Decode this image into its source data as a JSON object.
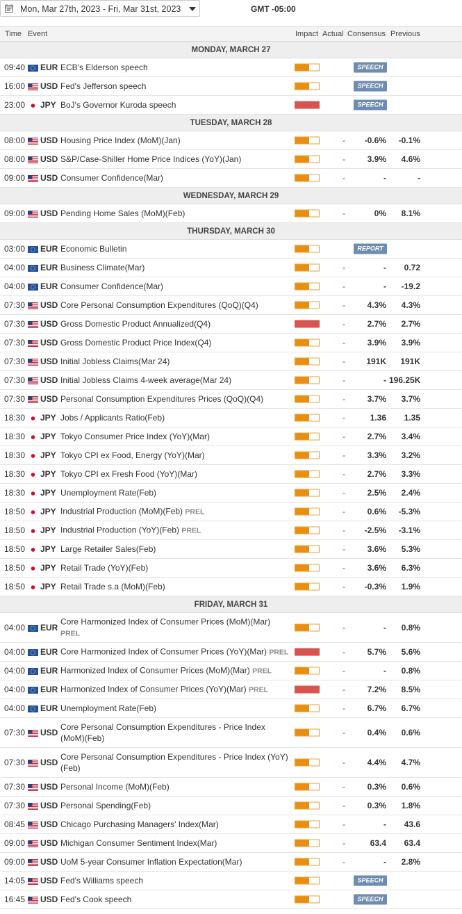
{
  "toolbar": {
    "date_range": "Mon, Mar 27th, 2023 -   Fri, Mar 31st, 2023",
    "timezone": "GMT -05:00"
  },
  "columns": {
    "time": "Time",
    "event": "Event",
    "impact": "Impact",
    "actual": "Actual",
    "consensus": "Consensus",
    "previous": "Previous"
  },
  "colors": {
    "impact_medium": "#e88f12",
    "impact_high": "#d9534f",
    "badge": "#6e8bb0"
  },
  "days": [
    {
      "label": "MONDAY, MARCH 27",
      "events": [
        {
          "time": "09:40",
          "currency": "EUR",
          "flag": "eu-flag-icon",
          "event": "ECB's Elderson speech",
          "impact": "medium",
          "actual": "",
          "consensus": "",
          "previous": "",
          "badge": "SPEECH"
        },
        {
          "time": "16:00",
          "currency": "USD",
          "flag": "us-flag-icon",
          "event": "Fed's Jefferson speech",
          "impact": "medium",
          "actual": "",
          "consensus": "",
          "previous": "",
          "badge": "SPEECH"
        },
        {
          "time": "23:00",
          "currency": "JPY",
          "flag": "jp-flag-icon",
          "event": "BoJ's Governor Kuroda speech",
          "impact": "high",
          "actual": "",
          "consensus": "",
          "previous": "",
          "badge": "SPEECH"
        }
      ]
    },
    {
      "label": "TUESDAY, MARCH 28",
      "events": [
        {
          "time": "08:00",
          "currency": "USD",
          "flag": "us-flag-icon",
          "event": "Housing Price Index (MoM)(Jan)",
          "impact": "medium",
          "actual": "-",
          "consensus": "-0.6%",
          "previous": "-0.1%"
        },
        {
          "time": "08:00",
          "currency": "USD",
          "flag": "us-flag-icon",
          "event": "S&P/Case-Shiller Home Price Indices (YoY)(Jan)",
          "impact": "medium",
          "actual": "-",
          "consensus": "3.9%",
          "previous": "4.6%"
        },
        {
          "time": "09:00",
          "currency": "USD",
          "flag": "us-flag-icon",
          "event": "Consumer Confidence(Mar)",
          "impact": "medium",
          "actual": "-",
          "consensus": "-",
          "previous": "-"
        }
      ]
    },
    {
      "label": "WEDNESDAY, MARCH 29",
      "events": [
        {
          "time": "09:00",
          "currency": "USD",
          "flag": "us-flag-icon",
          "event": "Pending Home Sales (MoM)(Feb)",
          "impact": "medium",
          "actual": "-",
          "consensus": "0%",
          "previous": "8.1%"
        }
      ]
    },
    {
      "label": "THURSDAY, MARCH 30",
      "events": [
        {
          "time": "03:00",
          "currency": "EUR",
          "flag": "eu-flag-icon",
          "event": "Economic Bulletin",
          "impact": "medium",
          "actual": "",
          "consensus": "",
          "previous": "",
          "badge": "REPORT"
        },
        {
          "time": "04:00",
          "currency": "EUR",
          "flag": "eu-flag-icon",
          "event": "Business Climate(Mar)",
          "impact": "medium",
          "actual": "-",
          "consensus": "-",
          "previous": "0.72"
        },
        {
          "time": "04:00",
          "currency": "EUR",
          "flag": "eu-flag-icon",
          "event": "Consumer Confidence(Mar)",
          "impact": "medium",
          "actual": "-",
          "consensus": "-",
          "previous": "-19.2"
        },
        {
          "time": "07:30",
          "currency": "USD",
          "flag": "us-flag-icon",
          "event": "Core Personal Consumption Expenditures (QoQ)(Q4)",
          "impact": "medium",
          "actual": "-",
          "consensus": "4.3%",
          "previous": "4.3%"
        },
        {
          "time": "07:30",
          "currency": "USD",
          "flag": "us-flag-icon",
          "event": "Gross Domestic Product Annualized(Q4)",
          "impact": "high",
          "actual": "-",
          "consensus": "2.7%",
          "previous": "2.7%"
        },
        {
          "time": "07:30",
          "currency": "USD",
          "flag": "us-flag-icon",
          "event": "Gross Domestic Product Price Index(Q4)",
          "impact": "medium",
          "actual": "-",
          "consensus": "3.9%",
          "previous": "3.9%"
        },
        {
          "time": "07:30",
          "currency": "USD",
          "flag": "us-flag-icon",
          "event": "Initial Jobless Claims(Mar 24)",
          "impact": "medium",
          "actual": "-",
          "consensus": "191K",
          "previous": "191K"
        },
        {
          "time": "07:30",
          "currency": "USD",
          "flag": "us-flag-icon",
          "event": "Initial Jobless Claims 4-week average(Mar 24)",
          "impact": "medium",
          "actual": "-",
          "consensus": "-",
          "previous": "196.25K"
        },
        {
          "time": "07:30",
          "currency": "USD",
          "flag": "us-flag-icon",
          "event": "Personal Consumption Expenditures Prices (QoQ)(Q4)",
          "impact": "medium",
          "actual": "-",
          "consensus": "3.7%",
          "previous": "3.7%"
        },
        {
          "time": "18:30",
          "currency": "JPY",
          "flag": "jp-flag-icon",
          "event": "Jobs / Applicants Ratio(Feb)",
          "impact": "medium",
          "actual": "-",
          "consensus": "1.36",
          "previous": "1.35"
        },
        {
          "time": "18:30",
          "currency": "JPY",
          "flag": "jp-flag-icon",
          "event": "Tokyo Consumer Price Index (YoY)(Mar)",
          "impact": "medium",
          "actual": "-",
          "consensus": "2.7%",
          "previous": "3.4%"
        },
        {
          "time": "18:30",
          "currency": "JPY",
          "flag": "jp-flag-icon",
          "event": "Tokyo CPI ex Food, Energy (YoY)(Mar)",
          "impact": "medium",
          "actual": "-",
          "consensus": "3.3%",
          "previous": "3.2%"
        },
        {
          "time": "18:30",
          "currency": "JPY",
          "flag": "jp-flag-icon",
          "event": "Tokyo CPI ex Fresh Food (YoY)(Mar)",
          "impact": "medium",
          "actual": "-",
          "consensus": "2.7%",
          "previous": "3.3%"
        },
        {
          "time": "18:30",
          "currency": "JPY",
          "flag": "jp-flag-icon",
          "event": "Unemployment Rate(Feb)",
          "impact": "medium",
          "actual": "-",
          "consensus": "2.5%",
          "previous": "2.4%"
        },
        {
          "time": "18:50",
          "currency": "JPY",
          "flag": "jp-flag-icon",
          "event": "Industrial Production (MoM)(Feb)",
          "prel": "PREL",
          "impact": "medium",
          "actual": "-",
          "consensus": "0.6%",
          "previous": "-5.3%"
        },
        {
          "time": "18:50",
          "currency": "JPY",
          "flag": "jp-flag-icon",
          "event": "Industrial Production (YoY)(Feb)",
          "prel": "PREL",
          "impact": "medium",
          "actual": "-",
          "consensus": "-2.5%",
          "previous": "-3.1%"
        },
        {
          "time": "18:50",
          "currency": "JPY",
          "flag": "jp-flag-icon",
          "event": "Large Retailer Sales(Feb)",
          "impact": "medium",
          "actual": "-",
          "consensus": "3.6%",
          "previous": "5.3%"
        },
        {
          "time": "18:50",
          "currency": "JPY",
          "flag": "jp-flag-icon",
          "event": "Retail Trade (YoY)(Feb)",
          "impact": "medium",
          "actual": "-",
          "consensus": "3.6%",
          "previous": "6.3%"
        },
        {
          "time": "18:50",
          "currency": "JPY",
          "flag": "jp-flag-icon",
          "event": "Retail Trade s.a (MoM)(Feb)",
          "impact": "medium",
          "actual": "-",
          "consensus": "-0.3%",
          "previous": "1.9%"
        }
      ]
    },
    {
      "label": "FRIDAY, MARCH 31",
      "events": [
        {
          "time": "04:00",
          "currency": "EUR",
          "flag": "eu-flag-icon",
          "event": "Core Harmonized Index of Consumer Prices (MoM)(Mar)",
          "prel": "PREL",
          "impact": "medium",
          "actual": "-",
          "consensus": "-",
          "previous": "0.8%",
          "tall": true
        },
        {
          "time": "04:00",
          "currency": "EUR",
          "flag": "eu-flag-icon",
          "event": "Core Harmonized Index of Consumer Prices (YoY)(Mar)",
          "prel": "PREL",
          "impact": "high",
          "actual": "-",
          "consensus": "5.7%",
          "previous": "5.6%"
        },
        {
          "time": "04:00",
          "currency": "EUR",
          "flag": "eu-flag-icon",
          "event": "Harmonized Index of Consumer Prices (MoM)(Mar)",
          "prel": "PREL",
          "impact": "medium",
          "actual": "-",
          "consensus": "-",
          "previous": "0.8%"
        },
        {
          "time": "04:00",
          "currency": "EUR",
          "flag": "eu-flag-icon",
          "event": "Harmonized Index of Consumer Prices (YoY)(Mar)",
          "prel": "PREL",
          "impact": "high",
          "actual": "-",
          "consensus": "7.2%",
          "previous": "8.5%"
        },
        {
          "time": "04:00",
          "currency": "EUR",
          "flag": "eu-flag-icon",
          "event": "Unemployment Rate(Feb)",
          "impact": "medium",
          "actual": "-",
          "consensus": "6.7%",
          "previous": "6.7%"
        },
        {
          "time": "07:30",
          "currency": "USD",
          "flag": "us-flag-icon",
          "event": "Core Personal Consumption Expenditures - Price Index (MoM)(Feb)",
          "impact": "medium",
          "actual": "-",
          "consensus": "0.4%",
          "previous": "0.6%",
          "tall": true
        },
        {
          "time": "07:30",
          "currency": "USD",
          "flag": "us-flag-icon",
          "event": "Core Personal Consumption Expenditures - Price Index (YoY)(Feb)",
          "impact": "medium",
          "actual": "-",
          "consensus": "4.4%",
          "previous": "4.7%",
          "tall": true
        },
        {
          "time": "07:30",
          "currency": "USD",
          "flag": "us-flag-icon",
          "event": "Personal Income (MoM)(Feb)",
          "impact": "medium",
          "actual": "-",
          "consensus": "0.3%",
          "previous": "0.6%"
        },
        {
          "time": "07:30",
          "currency": "USD",
          "flag": "us-flag-icon",
          "event": "Personal Spending(Feb)",
          "impact": "medium",
          "actual": "-",
          "consensus": "0.3%",
          "previous": "1.8%"
        },
        {
          "time": "08:45",
          "currency": "USD",
          "flag": "us-flag-icon",
          "event": "Chicago Purchasing Managers' Index(Mar)",
          "impact": "medium",
          "actual": "-",
          "consensus": "-",
          "previous": "43.6"
        },
        {
          "time": "09:00",
          "currency": "USD",
          "flag": "us-flag-icon",
          "event": "Michigan Consumer Sentiment Index(Mar)",
          "impact": "medium",
          "actual": "-",
          "consensus": "63.4",
          "previous": "63.4"
        },
        {
          "time": "09:00",
          "currency": "USD",
          "flag": "us-flag-icon",
          "event": "UoM 5-year Consumer Inflation Expectation(Mar)",
          "impact": "medium",
          "actual": "-",
          "consensus": "-",
          "previous": "2.8%"
        },
        {
          "time": "14:05",
          "currency": "USD",
          "flag": "us-flag-icon",
          "event": "Fed's Williams speech",
          "impact": "medium",
          "actual": "",
          "consensus": "",
          "previous": "",
          "badge": "SPEECH"
        },
        {
          "time": "16:45",
          "currency": "USD",
          "flag": "us-flag-icon",
          "event": "Fed's Cook speech",
          "impact": "medium",
          "actual": "",
          "consensus": "",
          "previous": "",
          "badge": "SPEECH"
        }
      ]
    }
  ]
}
